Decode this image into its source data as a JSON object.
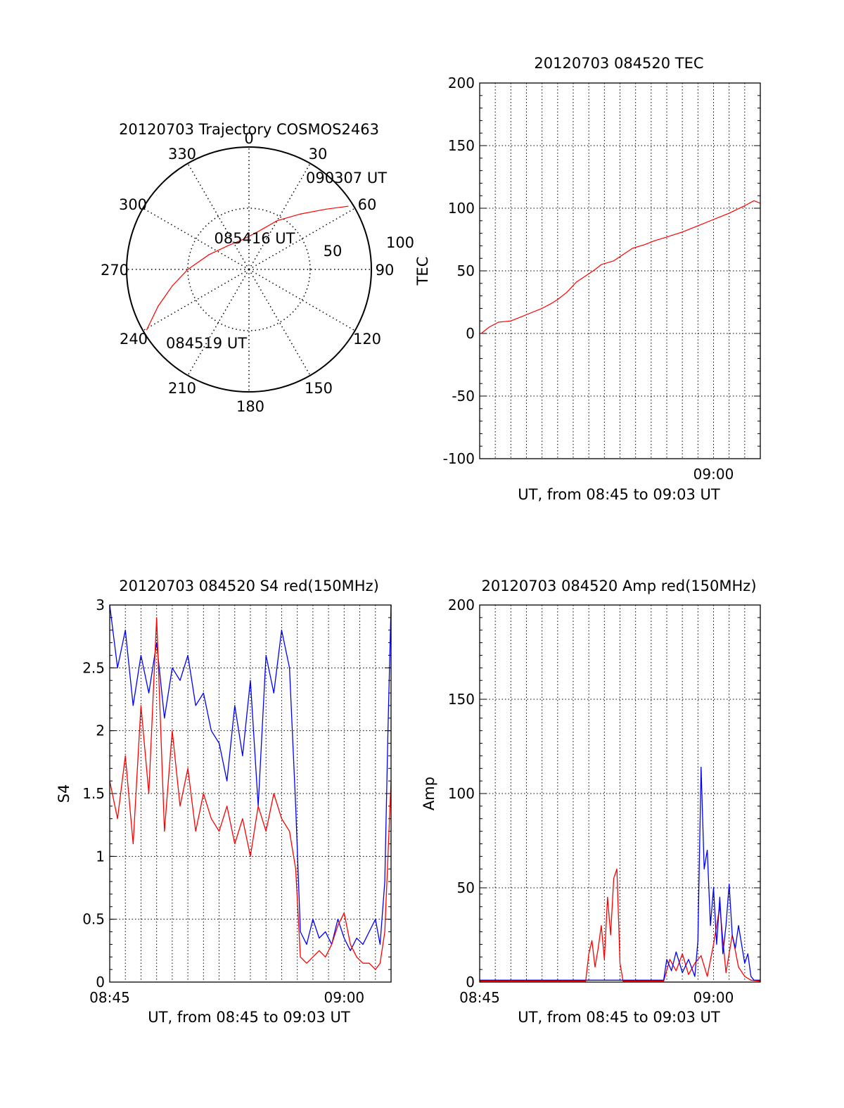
{
  "colors": {
    "red": "#ff0000",
    "blue": "#0000ff",
    "axis": "#000000",
    "grid": "#000000",
    "background": "#ffffff"
  },
  "chart_data": [
    {
      "id": "polar",
      "type": "scatter",
      "subtype": "polar-trajectory",
      "title": "20120703 Trajectory COSMOS2463",
      "azimuth_labels": [
        "0",
        "30",
        "60",
        "90",
        "120",
        "150",
        "180",
        "210",
        "240",
        "270",
        "300",
        "330"
      ],
      "radial_labels": [
        "50",
        "100"
      ],
      "zenith_angle_rings": [
        50,
        100
      ],
      "grid": true,
      "series": [
        {
          "color": "#ff0000",
          "points": [
            {
              "az": 239.5,
              "za": 97,
              "time": "084519 UT"
            },
            {
              "az": 248,
              "za": 80
            },
            {
              "az": 258,
              "za": 64
            },
            {
              "az": 270,
              "za": 50
            },
            {
              "az": 290,
              "za": 35
            },
            {
              "az": 318,
              "za": 26
            },
            {
              "az": 348,
              "za": 25
            },
            {
              "az": 12,
              "za": 31,
              "time": "085416 UT"
            },
            {
              "az": 30,
              "za": 46
            },
            {
              "az": 43,
              "za": 62
            },
            {
              "az": 52,
              "za": 80
            },
            {
              "az": 57.5,
              "za": 96,
              "time": "090307 UT"
            }
          ]
        }
      ],
      "annotations": [
        "090307 UT",
        "085416 UT",
        "084519 UT"
      ]
    },
    {
      "id": "tec",
      "type": "line",
      "title": "20120703 084520 TEC",
      "xlabel": "UT, from 08:45 to 09:03 UT",
      "ylabel": "TEC",
      "xlim": [
        0,
        18
      ],
      "ylim": [
        -100,
        200
      ],
      "yticks": [
        "-100",
        "-50",
        "0",
        "50",
        "100",
        "150",
        "200"
      ],
      "xtick_labels": [
        {
          "minute": 15,
          "label": "09:00"
        }
      ],
      "grid": true,
      "series": [
        {
          "color": "#ff0000",
          "x": [
            0.1,
            0.6,
            1.2,
            2.0,
            2.6,
            3.2,
            4.0,
            4.6,
            5.0,
            5.6,
            6.2,
            6.8,
            7.4,
            7.8,
            8.6,
            9.2,
            9.8,
            10.6,
            11.2,
            12.0,
            13.0,
            14.0,
            15.0,
            16.0,
            17.0,
            17.6,
            18.0
          ],
          "y": [
            0,
            5,
            9,
            10,
            13,
            16,
            20,
            24,
            27,
            33,
            41,
            46,
            51,
            55,
            58,
            63,
            68,
            71,
            74,
            77,
            81,
            86,
            91,
            96,
            102,
            106,
            104
          ]
        }
      ]
    },
    {
      "id": "s4",
      "type": "line",
      "title": "20120703 084520 S4 red(150MHz)",
      "xlabel": "UT, from 08:45 to 09:03 UT",
      "ylabel": "S4",
      "xlim": [
        0,
        18
      ],
      "ylim": [
        0,
        3
      ],
      "yticks": [
        "0",
        "0.5",
        "1",
        "1.5",
        "2",
        "2.5",
        "3"
      ],
      "xtick_labels": [
        {
          "minute": 0,
          "label": "08:45"
        },
        {
          "minute": 15,
          "label": "09:00"
        }
      ],
      "grid": true,
      "series": [
        {
          "color": "#0000ff",
          "x": [
            0.0,
            0.5,
            1.0,
            1.5,
            2.0,
            2.5,
            3.0,
            3.5,
            4.0,
            4.5,
            5.0,
            5.5,
            6.0,
            6.5,
            7.0,
            7.5,
            8.0,
            8.5,
            9.0,
            9.5,
            10.0,
            10.5,
            11.0,
            11.5,
            11.9,
            12.2,
            12.6,
            13.0,
            13.4,
            13.8,
            14.2,
            14.6,
            15.0,
            15.4,
            15.8,
            16.2,
            16.6,
            17.0,
            17.3,
            17.6,
            17.8,
            18.0
          ],
          "y": [
            3.0,
            2.5,
            2.8,
            2.2,
            2.6,
            2.3,
            2.7,
            2.1,
            2.5,
            2.4,
            2.6,
            2.2,
            2.3,
            2.0,
            1.9,
            1.6,
            2.2,
            1.8,
            2.4,
            1.4,
            2.6,
            2.3,
            2.8,
            2.5,
            1.4,
            0.4,
            0.3,
            0.5,
            0.35,
            0.4,
            0.3,
            0.5,
            0.35,
            0.25,
            0.35,
            0.3,
            0.4,
            0.5,
            0.3,
            0.8,
            2.0,
            3.0
          ]
        },
        {
          "color": "#ff0000",
          "x": [
            0.0,
            0.5,
            1.0,
            1.5,
            2.0,
            2.5,
            3.0,
            3.5,
            4.0,
            4.5,
            5.0,
            5.5,
            6.0,
            6.5,
            7.0,
            7.5,
            8.0,
            8.5,
            9.0,
            9.5,
            10.0,
            10.5,
            11.0,
            11.5,
            11.9,
            12.2,
            12.6,
            13.0,
            13.4,
            13.8,
            14.2,
            14.6,
            15.0,
            15.4,
            15.8,
            16.2,
            16.6,
            17.0,
            17.3,
            17.6,
            17.8,
            18.0
          ],
          "y": [
            1.6,
            1.3,
            1.8,
            1.1,
            2.2,
            1.5,
            2.9,
            1.2,
            2.0,
            1.4,
            1.7,
            1.2,
            1.5,
            1.3,
            1.2,
            1.4,
            1.1,
            1.3,
            1.0,
            1.4,
            1.2,
            1.5,
            1.3,
            1.2,
            0.9,
            0.2,
            0.15,
            0.2,
            0.25,
            0.2,
            0.3,
            0.45,
            0.55,
            0.3,
            0.2,
            0.15,
            0.15,
            0.1,
            0.15,
            0.4,
            1.0,
            1.6
          ]
        }
      ]
    },
    {
      "id": "amp",
      "type": "line",
      "title": "20120703 084520 Amp red(150MHz)",
      "xlabel": "UT, from 08:45 to 09:03 UT",
      "ylabel": "Amp",
      "xlim": [
        0,
        18
      ],
      "ylim": [
        0,
        200
      ],
      "yticks": [
        "0",
        "50",
        "100",
        "150",
        "200"
      ],
      "xtick_labels": [
        {
          "minute": 0,
          "label": "08:45"
        },
        {
          "minute": 15,
          "label": "09:00"
        }
      ],
      "grid": true,
      "series": [
        {
          "color": "#ff0000",
          "x": [
            0.0,
            6.8,
            7.0,
            7.2,
            7.4,
            7.6,
            7.8,
            8.0,
            8.2,
            8.4,
            8.6,
            8.8,
            9.0,
            9.2,
            11.8,
            12.2,
            12.6,
            13.0,
            13.4,
            13.8,
            14.2,
            14.6,
            15.0,
            15.4,
            15.8,
            16.2,
            16.6,
            17.0,
            17.4,
            18.0
          ],
          "y": [
            0.5,
            0.5,
            15,
            22,
            8,
            18,
            30,
            12,
            45,
            25,
            55,
            60,
            10,
            0.5,
            0.5,
            12,
            6,
            15,
            4,
            10,
            14,
            3,
            20,
            40,
            5,
            25,
            8,
            3,
            1,
            0.5
          ]
        },
        {
          "color": "#0000ff",
          "x": [
            0.0,
            11.8,
            12.0,
            12.3,
            12.6,
            13.0,
            13.4,
            13.8,
            14.0,
            14.2,
            14.4,
            14.6,
            14.8,
            15.0,
            15.2,
            15.4,
            15.6,
            15.8,
            16.0,
            16.2,
            16.4,
            16.6,
            16.8,
            17.0,
            17.2,
            17.4,
            17.6,
            18.0
          ],
          "y": [
            1,
            1,
            12,
            6,
            16,
            5,
            12,
            3,
            22,
            114,
            60,
            70,
            30,
            50,
            20,
            45,
            15,
            30,
            52,
            25,
            18,
            30,
            20,
            10,
            15,
            3,
            1,
            1
          ]
        }
      ]
    }
  ]
}
